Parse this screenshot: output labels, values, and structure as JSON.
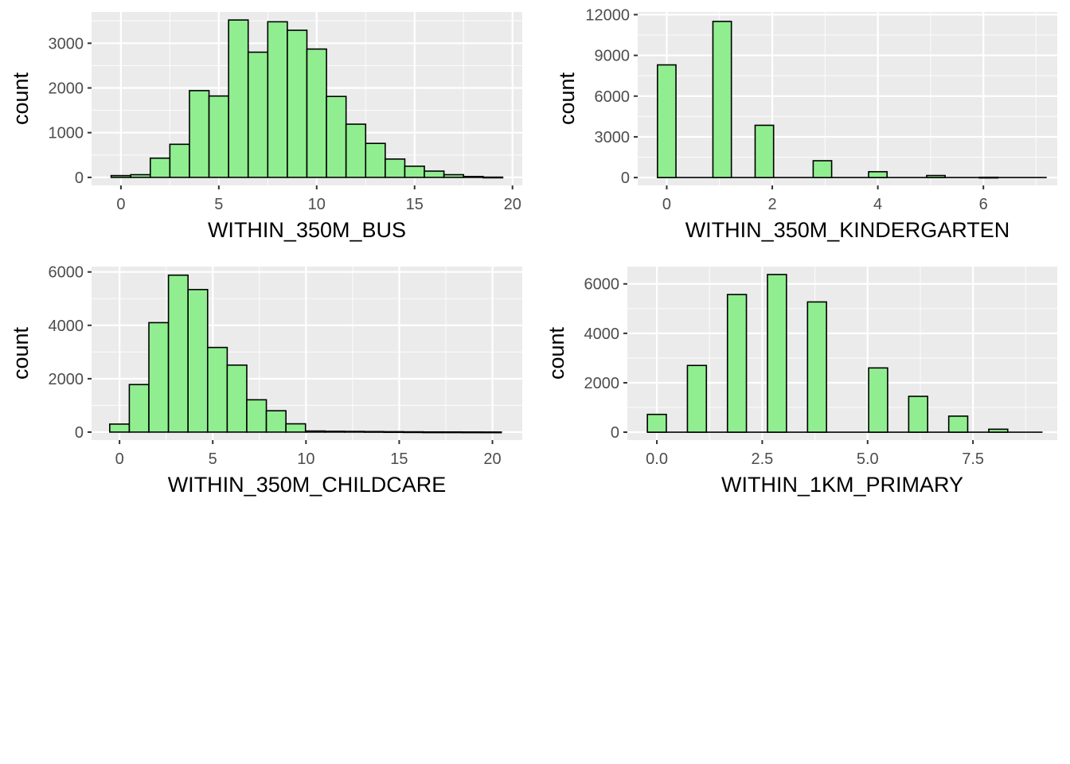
{
  "style": {
    "panel_bg": "#ebebeb",
    "grid_major": "#ffffff",
    "bar_fill": "#90ee90",
    "bar_stroke": "#000000",
    "tick_color": "#333333",
    "tick_label_color": "#4d4d4d"
  },
  "chart_data": [
    {
      "type": "bar",
      "subtype": "histogram",
      "xlabel": "WITHIN_350M_BUS",
      "ylabel": "count",
      "bin_width": 1,
      "xlim": [
        -1.5,
        20.5
      ],
      "ylim": [
        -180,
        3700
      ],
      "x_ticks": [
        0,
        5,
        10,
        15,
        20
      ],
      "x_tick_labels": [
        "0",
        "5",
        "10",
        "15",
        "20"
      ],
      "y_ticks": [
        0,
        1000,
        2000,
        3000
      ],
      "y_tick_labels": [
        "0",
        "1000",
        "2000",
        "3000"
      ],
      "grid": true,
      "bins": [
        {
          "x": 0,
          "count": 40
        },
        {
          "x": 1,
          "count": 60
        },
        {
          "x": 2,
          "count": 430
        },
        {
          "x": 3,
          "count": 740
        },
        {
          "x": 4,
          "count": 1940
        },
        {
          "x": 5,
          "count": 1820
        },
        {
          "x": 6,
          "count": 3520
        },
        {
          "x": 7,
          "count": 2800
        },
        {
          "x": 8,
          "count": 3480
        },
        {
          "x": 9,
          "count": 3290
        },
        {
          "x": 10,
          "count": 2870
        },
        {
          "x": 11,
          "count": 1810
        },
        {
          "x": 12,
          "count": 1190
        },
        {
          "x": 13,
          "count": 760
        },
        {
          "x": 14,
          "count": 410
        },
        {
          "x": 15,
          "count": 250
        },
        {
          "x": 16,
          "count": 140
        },
        {
          "x": 17,
          "count": 60
        },
        {
          "x": 18,
          "count": 20
        },
        {
          "x": 19,
          "count": 5
        }
      ]
    },
    {
      "type": "bar",
      "subtype": "histogram",
      "xlabel": "WITHIN_350M_KINDERGARTEN",
      "ylabel": "count",
      "bin_width": 0.35,
      "xlim": [
        -0.55,
        7.4
      ],
      "ylim": [
        -580,
        12200
      ],
      "x_ticks": [
        0,
        2,
        4,
        6
      ],
      "x_tick_labels": [
        "0",
        "2",
        "4",
        "6"
      ],
      "y_ticks": [
        0,
        3000,
        6000,
        9000,
        12000
      ],
      "y_tick_labels": [
        "0",
        "3000",
        "6000",
        "9000",
        "12000"
      ],
      "grid": true,
      "bins": [
        {
          "x": 0,
          "count": 8300
        },
        {
          "x": 1.05,
          "count": 11500
        },
        {
          "x": 1.85,
          "count": 3850
        },
        {
          "x": 2.95,
          "count": 1240
        },
        {
          "x": 4.0,
          "count": 430
        },
        {
          "x": 5.1,
          "count": 150
        },
        {
          "x": 6.1,
          "count": 20
        }
      ],
      "baseline_range": [
        -0.175,
        7.2
      ]
    },
    {
      "type": "bar",
      "subtype": "histogram",
      "xlabel": "WITHIN_350M_CHILDCARE",
      "ylabel": "count",
      "bin_width": 1.05,
      "xlim": [
        -1.5,
        21.6
      ],
      "ylim": [
        -300,
        6200
      ],
      "x_ticks": [
        0,
        5,
        10,
        15,
        20
      ],
      "x_tick_labels": [
        "0",
        "5",
        "10",
        "15",
        "20"
      ],
      "y_ticks": [
        0,
        2000,
        4000,
        6000
      ],
      "y_tick_labels": [
        "0",
        "2000",
        "4000",
        "6000"
      ],
      "grid": true,
      "bins": [
        {
          "x": 0,
          "count": 300
        },
        {
          "x": 1.05,
          "count": 1780
        },
        {
          "x": 2.1,
          "count": 4100
        },
        {
          "x": 3.15,
          "count": 5880
        },
        {
          "x": 4.2,
          "count": 5340
        },
        {
          "x": 5.25,
          "count": 3170
        },
        {
          "x": 6.3,
          "count": 2510
        },
        {
          "x": 7.35,
          "count": 1210
        },
        {
          "x": 8.4,
          "count": 800
        },
        {
          "x": 9.45,
          "count": 310
        },
        {
          "x": 10.5,
          "count": 40
        },
        {
          "x": 11.55,
          "count": 30
        },
        {
          "x": 12.6,
          "count": 25
        },
        {
          "x": 13.65,
          "count": 20
        },
        {
          "x": 14.7,
          "count": 15
        },
        {
          "x": 15.75,
          "count": 10
        },
        {
          "x": 16.8,
          "count": 5
        },
        {
          "x": 17.85,
          "count": 5
        },
        {
          "x": 18.9,
          "count": 3
        },
        {
          "x": 19.95,
          "count": 2
        }
      ]
    },
    {
      "type": "bar",
      "subtype": "histogram",
      "xlabel": "WITHIN_1KM_PRIMARY",
      "ylabel": "count",
      "bin_width": 0.45,
      "xlim": [
        -0.7,
        9.5
      ],
      "ylim": [
        -320,
        6700
      ],
      "x_ticks": [
        0,
        2.5,
        5,
        7.5
      ],
      "x_tick_labels": [
        "0.0",
        "2.5",
        "5.0",
        "7.5"
      ],
      "y_ticks": [
        0,
        2000,
        4000,
        6000
      ],
      "y_tick_labels": [
        "0",
        "2000",
        "4000",
        "6000"
      ],
      "grid": true,
      "bins": [
        {
          "x": 0,
          "count": 720
        },
        {
          "x": 0.95,
          "count": 2700
        },
        {
          "x": 1.9,
          "count": 5570
        },
        {
          "x": 2.85,
          "count": 6380
        },
        {
          "x": 3.8,
          "count": 5270
        },
        {
          "x": 5.25,
          "count": 2600
        },
        {
          "x": 6.2,
          "count": 1450
        },
        {
          "x": 7.15,
          "count": 650
        },
        {
          "x": 8.1,
          "count": 120
        }
      ],
      "baseline_range": [
        -0.225,
        9.15
      ]
    }
  ]
}
